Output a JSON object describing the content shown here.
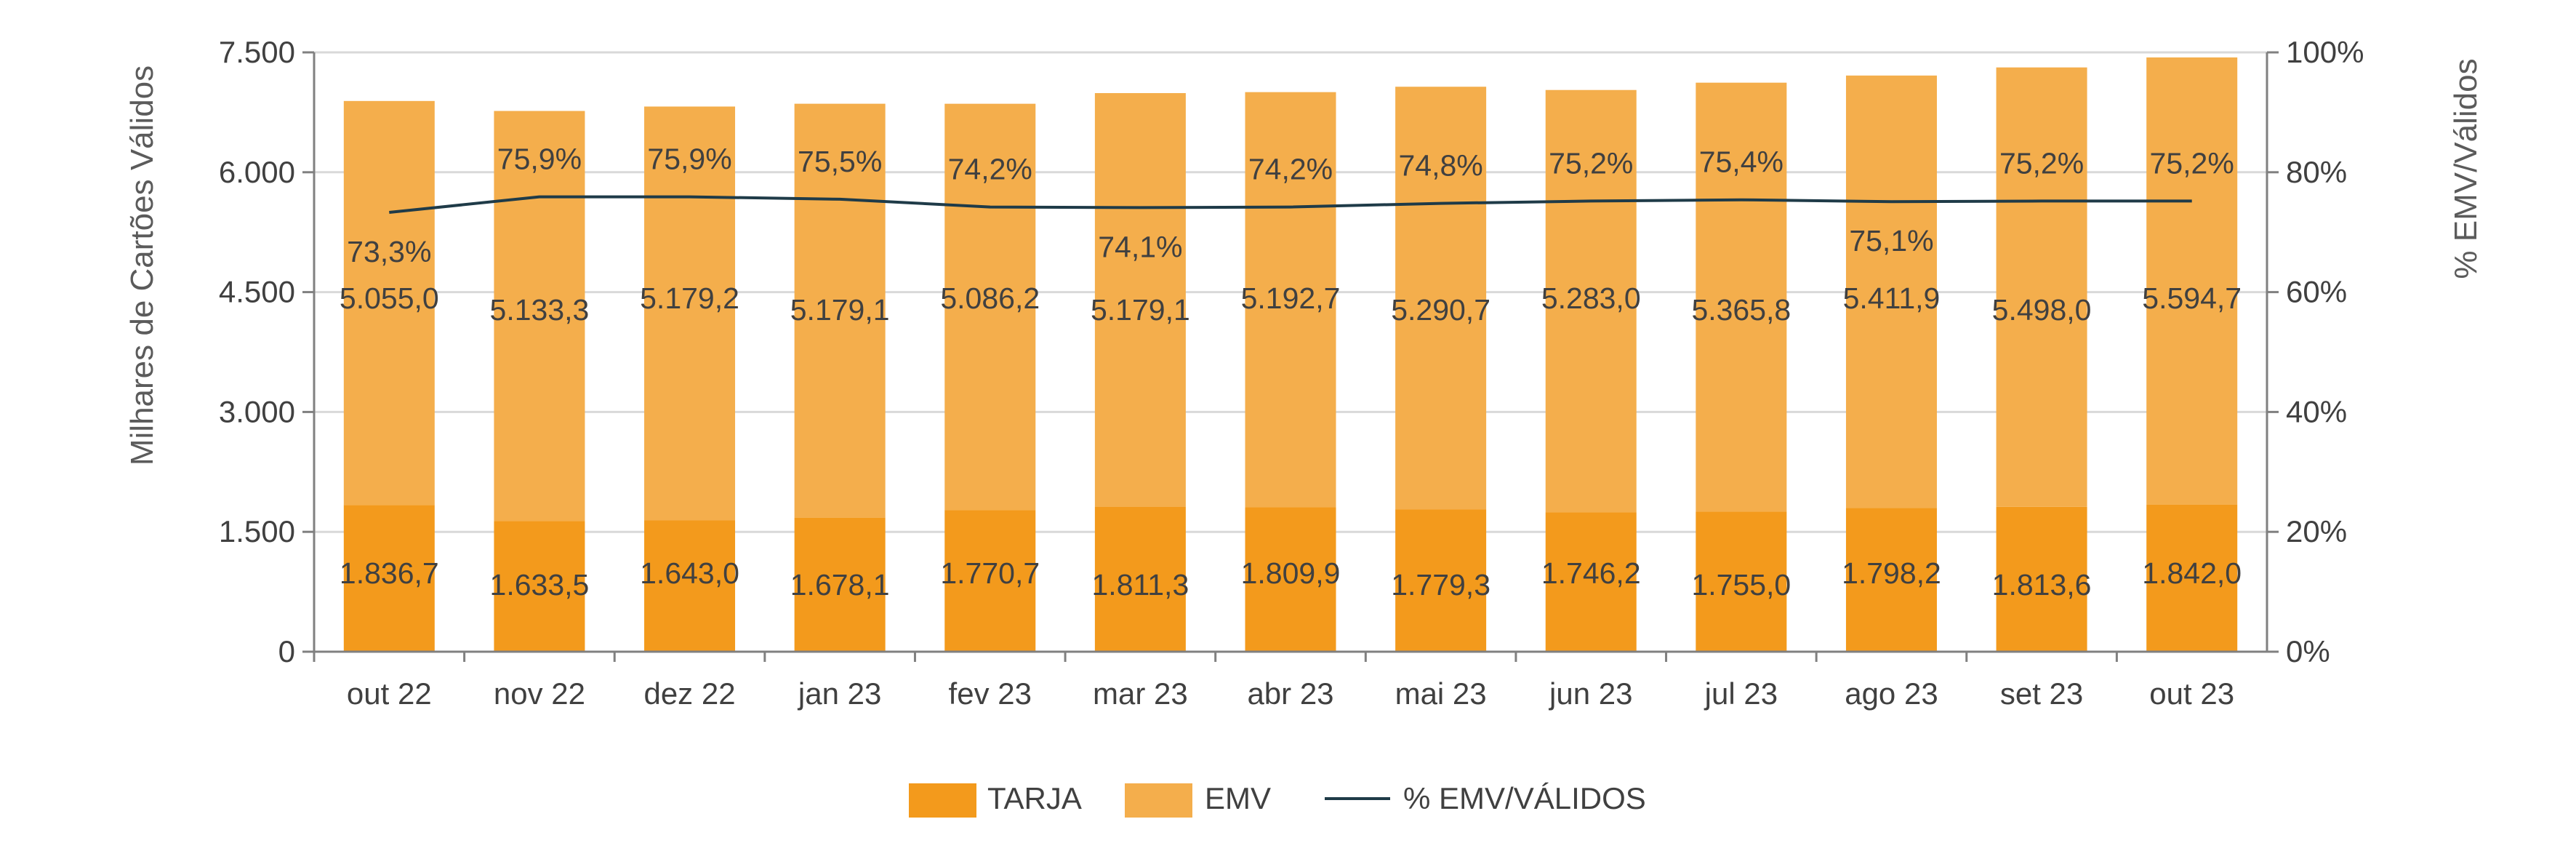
{
  "colors": {
    "tarja": "#F39A1C",
    "emv": "#F4AE4C",
    "line": "#1F3B48",
    "grid": "#D9D9D9",
    "axis": "#808080"
  },
  "chart_data": {
    "type": "bar",
    "stacked": true,
    "title": "",
    "categories": [
      "out 22",
      "nov 22",
      "dez 22",
      "jan 23",
      "fev 23",
      "mar 23",
      "abr 23",
      "mai 23",
      "jun 23",
      "jul 23",
      "ago 23",
      "set 23",
      "out 23"
    ],
    "ylabel": "Milhares de Cartões Válidos",
    "y2label": "% EMV/Válidos",
    "ylim": [
      0,
      7500
    ],
    "y2lim": [
      0,
      100
    ],
    "yticks": [
      "0",
      "1.500",
      "3.000",
      "4.500",
      "6.000",
      "7.500"
    ],
    "y2ticks": [
      "0%",
      "20%",
      "40%",
      "60%",
      "80%",
      "100%"
    ],
    "grid": true,
    "legend_position": "bottom",
    "series": [
      {
        "name": "TARJA",
        "kind": "bar",
        "values": [
          1836.7,
          1633.5,
          1643.0,
          1678.1,
          1770.7,
          1811.3,
          1809.9,
          1779.3,
          1746.2,
          1755.0,
          1798.2,
          1813.6,
          1842.0
        ],
        "labels": [
          "1.836,7",
          "1.633,5",
          "1.643,0",
          "1.678,1",
          "1.770,7",
          "1.811,3",
          "1.809,9",
          "1.779,3",
          "1.746,2",
          "1.755,0",
          "1.798,2",
          "1.813,6",
          "1.842,0"
        ]
      },
      {
        "name": "EMV",
        "kind": "bar",
        "values": [
          5055.0,
          5133.3,
          5179.2,
          5179.1,
          5086.2,
          5179.1,
          5192.7,
          5290.7,
          5283.0,
          5365.8,
          5411.9,
          5498.0,
          5594.7
        ],
        "labels": [
          "5.055,0",
          "5.133,3",
          "5.179,2",
          "5.179,1",
          "5.086,2",
          "5.179,1",
          "5.192,7",
          "5.290,7",
          "5.283,0",
          "5.365,8",
          "5.411,9",
          "5.498,0",
          "5.594,7"
        ]
      },
      {
        "name": "% EMV/VÁLIDOS",
        "kind": "line",
        "axis": "y2",
        "values": [
          73.3,
          75.9,
          75.9,
          75.5,
          74.2,
          74.1,
          74.2,
          74.8,
          75.2,
          75.4,
          75.1,
          75.2,
          75.2
        ],
        "labels": [
          "73,3%",
          "75,9%",
          "75,9%",
          "75,5%",
          "74,2%",
          "74,1%",
          "74,2%",
          "74,8%",
          "75,2%",
          "75,4%",
          "75,1%",
          "75,2%",
          "75,2%"
        ],
        "label_side": [
          "below",
          "above",
          "above",
          "above",
          "above",
          "below",
          "above",
          "above",
          "above",
          "above",
          "below",
          "above",
          "above"
        ]
      }
    ]
  }
}
